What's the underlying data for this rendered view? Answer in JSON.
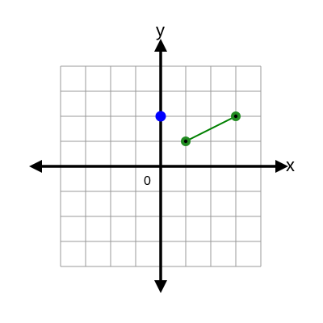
{
  "axes": {
    "x_label": "x",
    "y_label": "y",
    "origin_label": "0"
  },
  "grid": {
    "x_range": [
      -4,
      4
    ],
    "y_range": [
      -4,
      4
    ],
    "line_color": "#999999"
  },
  "chart_data": {
    "type": "scatter",
    "xlim": [
      -4,
      4
    ],
    "ylim": [
      -4,
      4
    ],
    "grid": true,
    "points": [
      {
        "x": 0,
        "y": 2,
        "color": "#0000ff",
        "segment": false
      }
    ],
    "segments": [
      {
        "from": {
          "x": 1,
          "y": 1
        },
        "to": {
          "x": 3,
          "y": 2
        },
        "color": "#008000",
        "point_fill": "#228B22",
        "point_center": "#000000"
      }
    ]
  }
}
